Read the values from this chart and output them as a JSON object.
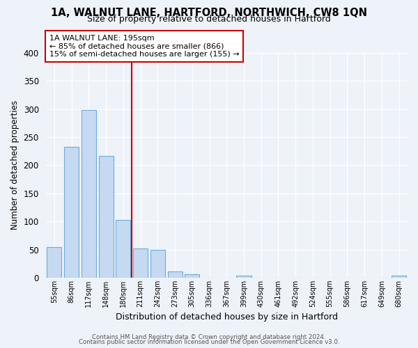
{
  "title_line1": "1A, WALNUT LANE, HARTFORD, NORTHWICH, CW8 1QN",
  "title_line2": "Size of property relative to detached houses in Hartford",
  "xlabel": "Distribution of detached houses by size in Hartford",
  "ylabel": "Number of detached properties",
  "bar_labels": [
    "55sqm",
    "86sqm",
    "117sqm",
    "148sqm",
    "180sqm",
    "211sqm",
    "242sqm",
    "273sqm",
    "305sqm",
    "336sqm",
    "367sqm",
    "399sqm",
    "430sqm",
    "461sqm",
    "492sqm",
    "524sqm",
    "555sqm",
    "586sqm",
    "617sqm",
    "649sqm",
    "680sqm"
  ],
  "bar_values": [
    54,
    233,
    298,
    217,
    103,
    52,
    49,
    11,
    6,
    0,
    0,
    4,
    0,
    0,
    0,
    0,
    0,
    0,
    0,
    0,
    4
  ],
  "bar_color": "#c5d9f0",
  "bar_edge_color": "#6aaddc",
  "ylim": [
    0,
    400
  ],
  "yticks": [
    0,
    50,
    100,
    150,
    200,
    250,
    300,
    350,
    400
  ],
  "vline_index": 4,
  "vline_color": "#cc0000",
  "annotation_title": "1A WALNUT LANE: 195sqm",
  "annotation_line1": "← 85% of detached houses are smaller (866)",
  "annotation_line2": "15% of semi-detached houses are larger (155) →",
  "annotation_box_color": "#cc0000",
  "footer_line1": "Contains HM Land Registry data © Crown copyright and database right 2024.",
  "footer_line2": "Contains public sector information licensed under the Open Government Licence v3.0.",
  "bg_color": "#eef2f9",
  "plot_bg_color": "#eef2f9",
  "title_fontsize": 10.5,
  "subtitle_fontsize": 9,
  "ylabel_fontsize": 8.5,
  "xlabel_fontsize": 9
}
